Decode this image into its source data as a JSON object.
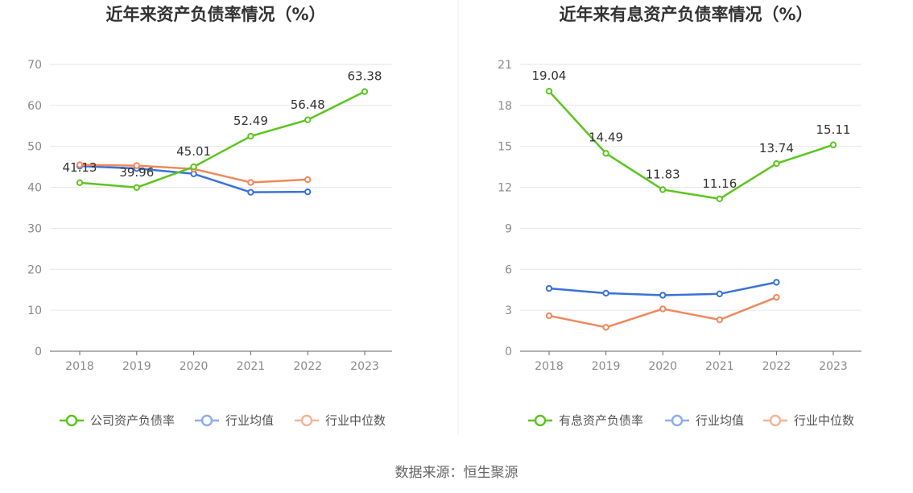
{
  "source_note": "数据来源：恒生聚源",
  "chart_data": [
    {
      "type": "line",
      "title": "近年来资产负债率情况（%）",
      "categories": [
        "2018",
        "2019",
        "2020",
        "2021",
        "2022",
        "2023"
      ],
      "ylim": [
        0,
        70
      ],
      "yticks": [
        0,
        10,
        20,
        30,
        40,
        50,
        60,
        70
      ],
      "grid": true,
      "legend_position": "bottom",
      "series": [
        {
          "name": "公司资产负债率",
          "color": "#5cc51f",
          "values": [
            41.13,
            39.96,
            45.01,
            52.49,
            56.48,
            63.38
          ],
          "labels": [
            "41.13",
            "39.96",
            "45.01",
            "52.49",
            "56.48",
            "63.38"
          ]
        },
        {
          "name": "行业均值",
          "color": "#3a72d8",
          "values": [
            45.2,
            44.6,
            43.3,
            38.8,
            38.9,
            null
          ],
          "labels": []
        },
        {
          "name": "行业中位数",
          "color": "#f0875a",
          "values": [
            45.5,
            45.3,
            44.5,
            41.2,
            41.9,
            null
          ],
          "labels": []
        }
      ]
    },
    {
      "type": "line",
      "title": "近年来有息资产负债率情况（%）",
      "categories": [
        "2018",
        "2019",
        "2020",
        "2021",
        "2022",
        "2023"
      ],
      "ylim": [
        0,
        21
      ],
      "yticks": [
        0,
        3,
        6,
        9,
        12,
        15,
        18,
        21
      ],
      "grid": true,
      "legend_position": "bottom",
      "series": [
        {
          "name": "有息资产负债率",
          "color": "#5cc51f",
          "values": [
            19.04,
            14.49,
            11.83,
            11.16,
            13.74,
            15.11
          ],
          "labels": [
            "19.04",
            "14.49",
            "11.83",
            "11.16",
            "13.74",
            "15.11"
          ]
        },
        {
          "name": "行业均值",
          "color": "#3a72d8",
          "values": [
            4.6,
            4.25,
            4.1,
            4.2,
            5.05,
            null
          ],
          "labels": []
        },
        {
          "name": "行业中位数",
          "color": "#f0875a",
          "values": [
            2.6,
            1.75,
            3.1,
            2.3,
            3.95,
            null
          ],
          "labels": []
        }
      ]
    }
  ]
}
